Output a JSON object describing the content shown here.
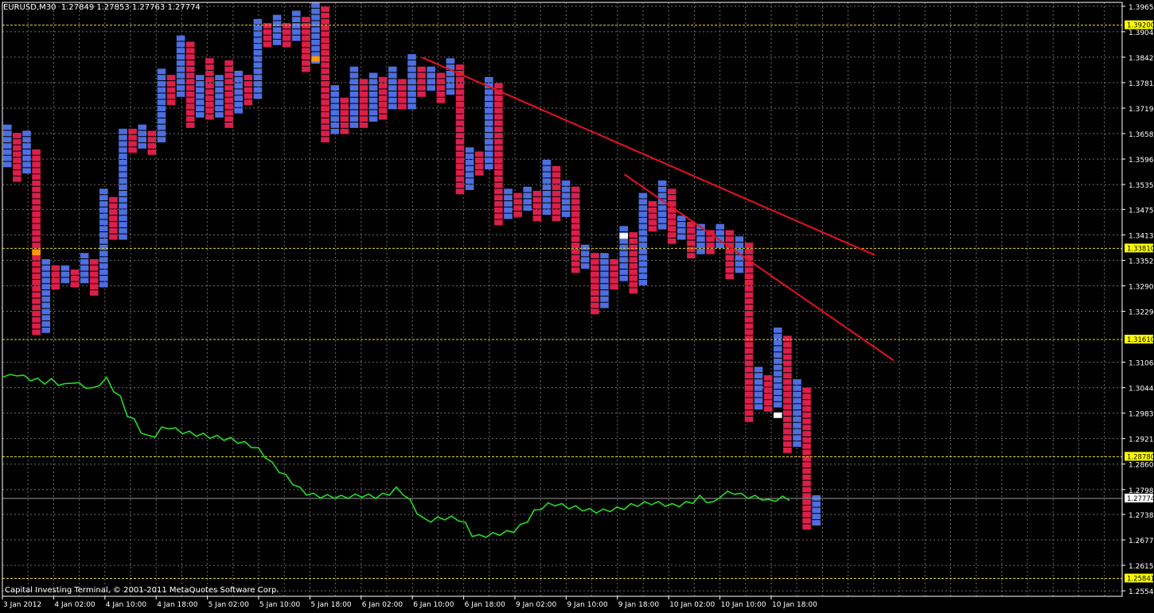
{
  "header": {
    "symbol": "EURUSD,M30",
    "ohlc": "1.27849 1.27853 1.27763 1.27774"
  },
  "footer": {
    "copyright": "Capital Investing Terminal, © 2001-2011 MetaQuotes Software Corp."
  },
  "colors": {
    "background": "#000000",
    "grid": "#6b6b6b",
    "up_box": "#4d6fe0",
    "down_box": "#dc1f4a",
    "line_series": "#22dd22",
    "trendline": "#e8121c",
    "level_line": "#e5d52b",
    "level_label_bg": "#ffff00",
    "current_price_line": "#9a9a9a"
  },
  "chart_data": {
    "type": "line",
    "instrument": "EURUSD",
    "timeframe": "M30",
    "current_price": 1.27774,
    "ylim": [
      1.2541,
      1.3975
    ],
    "y_tick_labels": [
      "1.39657",
      "1.39042",
      "1.38427",
      "1.37812",
      "1.37197",
      "1.36582",
      "1.35967",
      "1.35352",
      "1.34752",
      "1.34137",
      "1.33522",
      "1.32907",
      "1.32292",
      "1.31062",
      "1.30447",
      "1.29832",
      "1.29217",
      "1.28602",
      "1.27987",
      "1.27387",
      "1.26772",
      "1.26157",
      "1.25542"
    ],
    "x_tick_labels": [
      "3 Jan 2012",
      "4 Jan 02:00",
      "4 Jan 10:00",
      "4 Jan 18:00",
      "5 Jan 02:00",
      "5 Jan 10:00",
      "5 Jan 18:00",
      "6 Jan 02:00",
      "6 Jan 10:00",
      "6 Jan 18:00",
      "9 Jan 02:00",
      "9 Jan 10:00",
      "9 Jan 18:00",
      "10 Jan 02:00",
      "10 Jan 10:00",
      "10 Jan 18:00"
    ],
    "levels": [
      "1.39200",
      "1.33810",
      "1.31610",
      "1.28780",
      "1.25841"
    ],
    "current_price_label": "1.27774",
    "box_columns": [
      {
        "dir": "up",
        "low": 1.358,
        "high": 1.368
      },
      {
        "dir": "down",
        "low": 1.354,
        "high": 1.366
      },
      {
        "dir": "up",
        "low": 1.356,
        "high": 1.3665
      },
      {
        "dir": "down",
        "low": 1.3165,
        "high": 1.362
      },
      {
        "dir": "up",
        "low": 1.318,
        "high": 1.3355
      },
      {
        "dir": "down",
        "low": 1.3275,
        "high": 1.334
      },
      {
        "dir": "up",
        "low": 1.329,
        "high": 1.334
      },
      {
        "dir": "down",
        "low": 1.329,
        "high": 1.333
      },
      {
        "dir": "up",
        "low": 1.33,
        "high": 1.337
      },
      {
        "dir": "down",
        "low": 1.327,
        "high": 1.3355
      },
      {
        "dir": "up",
        "low": 1.3285,
        "high": 1.3525
      },
      {
        "dir": "down",
        "low": 1.3395,
        "high": 1.3505
      },
      {
        "dir": "up",
        "low": 1.34,
        "high": 1.367
      },
      {
        "dir": "down",
        "low": 1.3605,
        "high": 1.367
      },
      {
        "dir": "up",
        "low": 1.3625,
        "high": 1.368
      },
      {
        "dir": "down",
        "low": 1.3605,
        "high": 1.3665
      },
      {
        "dir": "up",
        "low": 1.3635,
        "high": 1.3815
      },
      {
        "dir": "down",
        "low": 1.3725,
        "high": 1.38
      },
      {
        "dir": "up",
        "low": 1.3745,
        "high": 1.3895
      },
      {
        "dir": "down",
        "low": 1.367,
        "high": 1.388
      },
      {
        "dir": "up",
        "low": 1.369,
        "high": 1.38
      },
      {
        "dir": "down",
        "low": 1.369,
        "high": 1.384
      },
      {
        "dir": "up",
        "low": 1.37,
        "high": 1.38
      },
      {
        "dir": "down",
        "low": 1.367,
        "high": 1.3835
      },
      {
        "dir": "up",
        "low": 1.37,
        "high": 1.381
      },
      {
        "dir": "down",
        "low": 1.3725,
        "high": 1.38
      },
      {
        "dir": "up",
        "low": 1.3745,
        "high": 1.3935
      },
      {
        "dir": "down",
        "low": 1.3865,
        "high": 1.3925
      },
      {
        "dir": "up",
        "low": 1.387,
        "high": 1.3945
      },
      {
        "dir": "down",
        "low": 1.3865,
        "high": 1.3925
      },
      {
        "dir": "up",
        "low": 1.388,
        "high": 1.3955
      },
      {
        "dir": "down",
        "low": 1.381,
        "high": 1.394
      },
      {
        "dir": "up",
        "low": 1.3825,
        "high": 1.3975
      },
      {
        "dir": "down",
        "low": 1.363,
        "high": 1.3965
      },
      {
        "dir": "up",
        "low": 1.365,
        "high": 1.3775
      },
      {
        "dir": "down",
        "low": 1.365,
        "high": 1.3745
      },
      {
        "dir": "up",
        "low": 1.3665,
        "high": 1.382
      },
      {
        "dir": "down",
        "low": 1.367,
        "high": 1.379
      },
      {
        "dir": "up",
        "low": 1.369,
        "high": 1.3805
      },
      {
        "dir": "down",
        "low": 1.3695,
        "high": 1.3795
      },
      {
        "dir": "up",
        "low": 1.371,
        "high": 1.382
      },
      {
        "dir": "down",
        "low": 1.3715,
        "high": 1.379
      },
      {
        "dir": "up",
        "low": 1.372,
        "high": 1.385
      },
      {
        "dir": "down",
        "low": 1.374,
        "high": 1.382
      },
      {
        "dir": "up",
        "low": 1.376,
        "high": 1.382
      },
      {
        "dir": "down",
        "low": 1.373,
        "high": 1.3805
      },
      {
        "dir": "up",
        "low": 1.375,
        "high": 1.384
      },
      {
        "dir": "down",
        "low": 1.3505,
        "high": 1.3825
      },
      {
        "dir": "up",
        "low": 1.3525,
        "high": 1.3625
      },
      {
        "dir": "down",
        "low": 1.355,
        "high": 1.3615
      },
      {
        "dir": "up",
        "low": 1.3565,
        "high": 1.3795
      },
      {
        "dir": "down",
        "low": 1.344,
        "high": 1.378
      },
      {
        "dir": "up",
        "low": 1.3455,
        "high": 1.3525
      },
      {
        "dir": "down",
        "low": 1.3455,
        "high": 1.3515
      },
      {
        "dir": "up",
        "low": 1.347,
        "high": 1.353
      },
      {
        "dir": "down",
        "low": 1.3445,
        "high": 1.352
      },
      {
        "dir": "up",
        "low": 1.346,
        "high": 1.3595
      },
      {
        "dir": "down",
        "low": 1.3445,
        "high": 1.358
      },
      {
        "dir": "up",
        "low": 1.346,
        "high": 1.3545
      },
      {
        "dir": "down",
        "low": 1.3315,
        "high": 1.353
      },
      {
        "dir": "up",
        "low": 1.333,
        "high": 1.339
      },
      {
        "dir": "down",
        "low": 1.3225,
        "high": 1.337
      },
      {
        "dir": "up",
        "low": 1.324,
        "high": 1.337
      },
      {
        "dir": "down",
        "low": 1.3285,
        "high": 1.3355
      },
      {
        "dir": "up",
        "low": 1.33,
        "high": 1.3435
      },
      {
        "dir": "down",
        "low": 1.3275,
        "high": 1.342
      },
      {
        "dir": "up",
        "low": 1.329,
        "high": 1.3515
      },
      {
        "dir": "down",
        "low": 1.3415,
        "high": 1.3495
      },
      {
        "dir": "up",
        "low": 1.343,
        "high": 1.3545
      },
      {
        "dir": "down",
        "low": 1.3385,
        "high": 1.3525
      },
      {
        "dir": "up",
        "low": 1.34,
        "high": 1.346
      },
      {
        "dir": "down",
        "low": 1.335,
        "high": 1.3445
      },
      {
        "dir": "up",
        "low": 1.3365,
        "high": 1.344
      },
      {
        "dir": "down",
        "low": 1.3365,
        "high": 1.3425
      },
      {
        "dir": "up",
        "low": 1.338,
        "high": 1.344
      },
      {
        "dir": "down",
        "low": 1.331,
        "high": 1.3425
      },
      {
        "dir": "up",
        "low": 1.3325,
        "high": 1.341
      },
      {
        "dir": "down",
        "low": 1.2965,
        "high": 1.3395
      },
      {
        "dir": "up",
        "low": 1.2985,
        "high": 1.3095
      },
      {
        "dir": "down",
        "low": 1.2985,
        "high": 1.3075
      },
      {
        "dir": "up",
        "low": 1.3,
        "high": 1.319
      },
      {
        "dir": "down",
        "low": 1.288,
        "high": 1.317
      },
      {
        "dir": "up",
        "low": 1.2895,
        "high": 1.3065
      },
      {
        "dir": "down",
        "low": 1.2695,
        "high": 1.3045
      },
      {
        "dir": "up",
        "low": 1.271,
        "high": 1.2785
      }
    ],
    "series": [
      {
        "points": [
          1.3075,
          1.3072,
          1.3078,
          1.307,
          1.3066,
          1.3063,
          1.3058,
          1.3062,
          1.3055,
          1.305,
          1.306,
          1.3052,
          1.3048,
          1.304,
          1.3055,
          1.3065,
          1.304,
          1.302,
          1.298,
          1.2965,
          1.294,
          1.2925,
          1.293,
          1.2945,
          1.295,
          1.2943,
          1.2938,
          1.2935,
          1.2932,
          1.293,
          1.2927,
          1.2925,
          1.2922,
          1.292,
          1.2915,
          1.291,
          1.2905,
          1.2895,
          1.288,
          1.286,
          1.2845,
          1.283,
          1.2815,
          1.28,
          1.279,
          1.2785,
          1.2783,
          1.2782,
          1.2782,
          1.278,
          1.2782,
          1.2783,
          1.2785,
          1.2783,
          1.2782,
          1.2785,
          1.279,
          1.28,
          1.279,
          1.277,
          1.2745,
          1.2725,
          1.2725,
          1.2728,
          1.273,
          1.273,
          1.2728,
          1.2715,
          1.269,
          1.2685,
          1.2688,
          1.269,
          1.2693,
          1.2695,
          1.27,
          1.271,
          1.2725,
          1.2745,
          1.2755,
          1.2762,
          1.2764,
          1.276,
          1.2757,
          1.2755,
          1.2752,
          1.2748,
          1.2747,
          1.2747,
          1.275,
          1.2752,
          1.2755,
          1.276,
          1.2763,
          1.2765,
          1.2767,
          1.2765,
          1.2763,
          1.276,
          1.2762,
          1.2765,
          1.277,
          1.278,
          1.2772,
          1.2765,
          1.2785,
          1.279,
          1.2792,
          1.2785,
          1.2782,
          1.278,
          1.2778,
          1.277,
          1.2775,
          1.2778,
          1.2777
        ]
      }
    ],
    "trendlines": [
      {
        "x0": 43.5,
        "y0": 1.3842,
        "x1": 90.5,
        "y1": 1.3365
      },
      {
        "x0": 64.5,
        "y0": 1.356,
        "x1": 92.5,
        "y1": 1.311
      }
    ],
    "markers": [
      {
        "column": 3,
        "value": 1.3378,
        "color": "#ff9900"
      },
      {
        "column": 32,
        "value": 1.3845,
        "color": "#ff9900"
      },
      {
        "column": 64,
        "value": 1.3418,
        "color": "#ffffff"
      },
      {
        "column": 80,
        "value": 1.2985,
        "color": "#ffffff"
      }
    ]
  }
}
